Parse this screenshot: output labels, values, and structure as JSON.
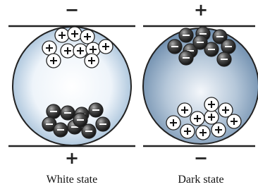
{
  "panels": [
    {
      "top_sign": "−",
      "bottom_sign": "+",
      "label": "White state"
    },
    {
      "top_sign": "+",
      "bottom_sign": "−",
      "label": "Dark state"
    }
  ]
}
